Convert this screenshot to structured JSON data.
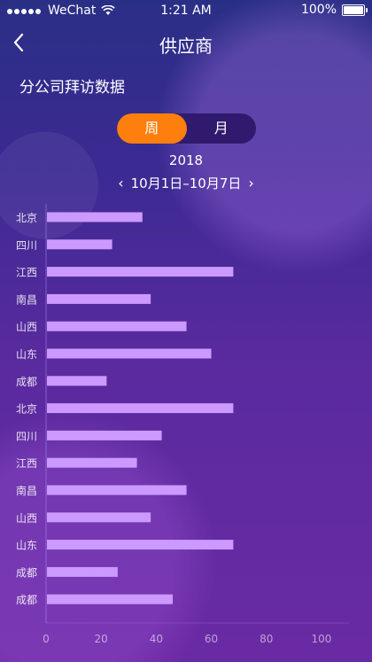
{
  "status_bar": {
    "carrier": "WeChat",
    "time": "1:21 AM",
    "battery": "100%",
    "icons": [
      "signal-dots-icon",
      "wifi-icon",
      "battery-icon"
    ]
  },
  "nav": {
    "title": "供应商",
    "back_icon": "chevron-left-icon"
  },
  "section": {
    "title": "分公司拜访数据"
  },
  "toggle": {
    "week_label": "周",
    "month_label": "月",
    "selected": "周",
    "active_color": "#ff7f0e"
  },
  "period": {
    "year": "2018",
    "range": "10月1日–10月7日",
    "prev_icon": "chevron-left-icon",
    "next_icon": "chevron-right-icon"
  },
  "chart_data": {
    "type": "bar",
    "orientation": "horizontal",
    "categories": [
      "北京",
      "四川",
      "江西",
      "南昌",
      "山西",
      "山东",
      "成都",
      "北京",
      "四川",
      "江西",
      "南昌",
      "山西",
      "山东",
      "成都",
      "成都"
    ],
    "values": [
      35,
      24,
      68,
      38,
      51,
      60,
      22,
      68,
      42,
      33,
      51,
      38,
      68,
      26,
      46
    ],
    "xlim": [
      0,
      110
    ],
    "xticks": [
      0,
      20,
      40,
      60,
      80,
      100
    ],
    "bar_color": "#cc99ff"
  }
}
